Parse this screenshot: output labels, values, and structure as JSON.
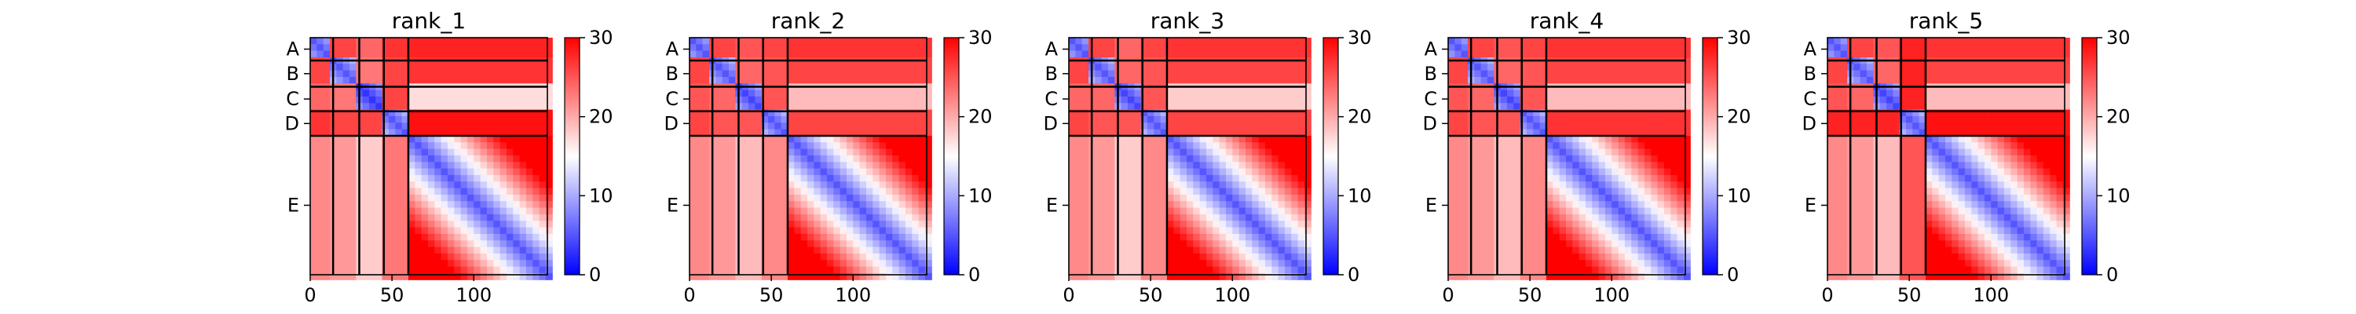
{
  "chart_data": [
    {
      "type": "heatmap",
      "title": "rank_1",
      "colorbar": {
        "min": 0,
        "max": 30,
        "ticks": [
          "0",
          "10",
          "20",
          "30"
        ],
        "colormap": "bwr"
      },
      "x_ticks": [
        "0",
        "50",
        "100"
      ],
      "x_range": [
        0,
        145
      ],
      "chains": [
        {
          "label": "A",
          "start": 0,
          "end": 14
        },
        {
          "label": "B",
          "start": 14,
          "end": 30
        },
        {
          "label": "C",
          "start": 30,
          "end": 45
        },
        {
          "label": "D",
          "start": 45,
          "end": 60
        },
        {
          "label": "E",
          "start": 60,
          "end": 145
        }
      ],
      "block_mean_values": [
        [
          5,
          26,
          24,
          27,
          28
        ],
        [
          26,
          5,
          23,
          26,
          27
        ],
        [
          24,
          23,
          3,
          26,
          17
        ],
        [
          27,
          26,
          26,
          5,
          29
        ],
        [
          22,
          21,
          18,
          23,
          5
        ]
      ]
    },
    {
      "type": "heatmap",
      "title": "rank_2",
      "colorbar": {
        "min": 0,
        "max": 30,
        "ticks": [
          "0",
          "10",
          "20",
          "30"
        ],
        "colormap": "bwr"
      },
      "x_ticks": [
        "0",
        "50",
        "100"
      ],
      "x_range": [
        0,
        145
      ],
      "chains": [
        {
          "label": "A",
          "start": 0,
          "end": 14
        },
        {
          "label": "B",
          "start": 14,
          "end": 30
        },
        {
          "label": "C",
          "start": 30,
          "end": 45
        },
        {
          "label": "D",
          "start": 45,
          "end": 60
        },
        {
          "label": "E",
          "start": 60,
          "end": 145
        }
      ],
      "block_mean_values": [
        [
          5,
          26,
          25,
          26,
          27
        ],
        [
          26,
          5,
          24,
          25,
          26
        ],
        [
          25,
          24,
          4,
          25,
          19
        ],
        [
          26,
          25,
          25,
          5,
          26
        ],
        [
          22,
          21,
          19,
          22,
          5
        ]
      ]
    },
    {
      "type": "heatmap",
      "title": "rank_3",
      "colorbar": {
        "min": 0,
        "max": 30,
        "ticks": [
          "0",
          "10",
          "20",
          "30"
        ],
        "colormap": "bwr"
      },
      "x_ticks": [
        "0",
        "50",
        "100"
      ],
      "x_range": [
        0,
        145
      ],
      "chains": [
        {
          "label": "A",
          "start": 0,
          "end": 14
        },
        {
          "label": "B",
          "start": 14,
          "end": 30
        },
        {
          "label": "C",
          "start": 30,
          "end": 45
        },
        {
          "label": "D",
          "start": 45,
          "end": 60
        },
        {
          "label": "E",
          "start": 60,
          "end": 145
        }
      ],
      "block_mean_values": [
        [
          5,
          26,
          24,
          26,
          27
        ],
        [
          26,
          5,
          24,
          25,
          26
        ],
        [
          24,
          24,
          4,
          25,
          18
        ],
        [
          26,
          25,
          25,
          5,
          26
        ],
        [
          22,
          21,
          18,
          22,
          5
        ]
      ]
    },
    {
      "type": "heatmap",
      "title": "rank_4",
      "colorbar": {
        "min": 0,
        "max": 30,
        "ticks": [
          "0",
          "10",
          "20",
          "30"
        ],
        "colormap": "bwr"
      },
      "x_ticks": [
        "0",
        "50",
        "100"
      ],
      "x_range": [
        0,
        145
      ],
      "chains": [
        {
          "label": "A",
          "start": 0,
          "end": 14
        },
        {
          "label": "B",
          "start": 14,
          "end": 30
        },
        {
          "label": "C",
          "start": 30,
          "end": 45
        },
        {
          "label": "D",
          "start": 45,
          "end": 60
        },
        {
          "label": "E",
          "start": 60,
          "end": 145
        }
      ],
      "block_mean_values": [
        [
          5,
          26,
          25,
          26,
          27
        ],
        [
          26,
          5,
          24,
          25,
          26
        ],
        [
          25,
          24,
          4,
          25,
          19
        ],
        [
          26,
          25,
          25,
          5,
          27
        ],
        [
          22,
          21,
          19,
          22,
          5
        ]
      ]
    },
    {
      "type": "heatmap",
      "title": "rank_5",
      "colorbar": {
        "min": 0,
        "max": 30,
        "ticks": [
          "0",
          "10",
          "20",
          "30"
        ],
        "colormap": "bwr"
      },
      "x_ticks": [
        "0",
        "50",
        "100"
      ],
      "x_range": [
        0,
        145
      ],
      "chains": [
        {
          "label": "A",
          "start": 0,
          "end": 14
        },
        {
          "label": "B",
          "start": 14,
          "end": 30
        },
        {
          "label": "C",
          "start": 30,
          "end": 45
        },
        {
          "label": "D",
          "start": 45,
          "end": 60
        },
        {
          "label": "E",
          "start": 60,
          "end": 145
        }
      ],
      "block_mean_values": [
        [
          5,
          26,
          25,
          28,
          27
        ],
        [
          26,
          5,
          24,
          28,
          26
        ],
        [
          25,
          24,
          4,
          28,
          19
        ],
        [
          28,
          28,
          28,
          5,
          29
        ],
        [
          22,
          21,
          19,
          25,
          5
        ]
      ]
    }
  ]
}
